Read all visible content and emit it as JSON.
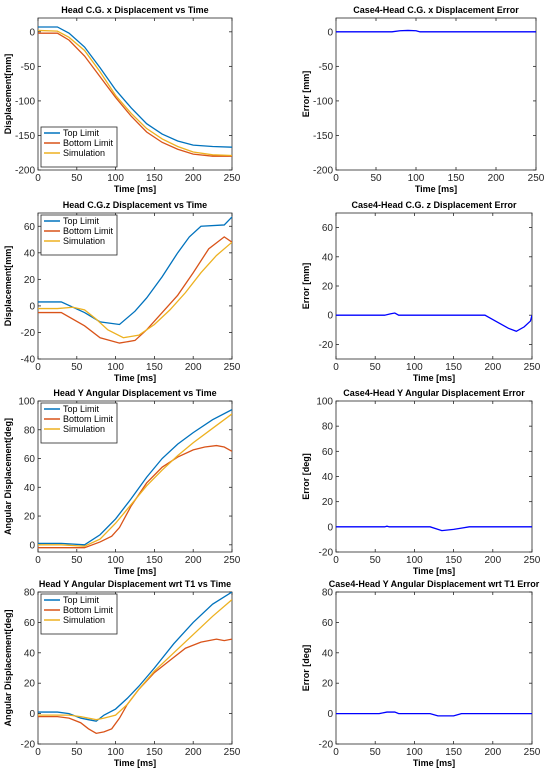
{
  "colors": {
    "top": "#0072BD",
    "bottom": "#D95319",
    "sim": "#EDB120",
    "error": "#0000FF"
  },
  "chart_data": [
    {
      "type": "line",
      "title": "Head C.G. x Displacement vs Time",
      "xlabel": "Time [ms]",
      "ylabel": "Displacement[mm]",
      "xlim": [
        0,
        250
      ],
      "ylim": [
        -200,
        20
      ],
      "xticks": [
        0,
        50,
        100,
        150,
        200,
        250
      ],
      "yticks": [
        -200,
        -150,
        -100,
        -50,
        0
      ],
      "legend": "bottom-left",
      "series": [
        {
          "name": "Top Limit",
          "color": "top",
          "x": [
            0,
            25,
            40,
            60,
            80,
            100,
            120,
            140,
            160,
            180,
            200,
            225,
            250
          ],
          "y": [
            7,
            7,
            -2,
            -22,
            -52,
            -84,
            -110,
            -133,
            -148,
            -158,
            -164,
            -166,
            -167
          ]
        },
        {
          "name": "Bottom Limit",
          "color": "bottom",
          "x": [
            0,
            25,
            40,
            60,
            80,
            100,
            120,
            140,
            160,
            180,
            200,
            225,
            250
          ],
          "y": [
            -2,
            -2,
            -12,
            -35,
            -65,
            -95,
            -122,
            -145,
            -160,
            -170,
            -177,
            -180,
            -180
          ]
        },
        {
          "name": "Simulation",
          "color": "sim",
          "x": [
            0,
            25,
            40,
            60,
            80,
            100,
            120,
            140,
            160,
            180,
            200,
            225,
            250
          ],
          "y": [
            2,
            1,
            -8,
            -27,
            -58,
            -92,
            -118,
            -140,
            -155,
            -166,
            -174,
            -178,
            -179
          ]
        }
      ]
    },
    {
      "type": "line",
      "title": "Case4-Head C.G. x Displacement Error",
      "xlabel": "Time [ms]",
      "ylabel": "Error [mm]",
      "xlim": [
        0,
        250
      ],
      "ylim": [
        -200,
        20
      ],
      "xticks": [
        0,
        50,
        100,
        150,
        200,
        250
      ],
      "yticks": [
        -200,
        -150,
        -100,
        -50,
        0
      ],
      "series": [
        {
          "color": "error",
          "x": [
            0,
            70,
            80,
            90,
            100,
            105,
            200,
            240,
            250
          ],
          "y": [
            0,
            0,
            1.5,
            2,
            1.5,
            0,
            0,
            0,
            0
          ]
        }
      ]
    },
    {
      "type": "line",
      "title": "Head C.G.z Displacement vs Time",
      "xlabel": "Time [ms]",
      "ylabel": "Displacement[mm]",
      "xlim": [
        0,
        250
      ],
      "ylim": [
        -40,
        70
      ],
      "xticks": [
        0,
        50,
        100,
        150,
        200,
        250
      ],
      "yticks": [
        -40,
        -20,
        0,
        20,
        40,
        60
      ],
      "legend": "top-left",
      "series": [
        {
          "name": "Top Limit",
          "color": "top",
          "x": [
            0,
            30,
            60,
            80,
            105,
            125,
            140,
            160,
            180,
            195,
            210,
            240,
            250
          ],
          "y": [
            3,
            3,
            -5,
            -12,
            -14,
            -4,
            6,
            22,
            40,
            52,
            60,
            61,
            67
          ]
        },
        {
          "name": "Bottom Limit",
          "color": "bottom",
          "x": [
            0,
            30,
            60,
            80,
            105,
            125,
            140,
            160,
            180,
            200,
            220,
            240,
            250
          ],
          "y": [
            -5,
            -5,
            -15,
            -24,
            -28,
            -26,
            -18,
            -5,
            8,
            25,
            43,
            52,
            48
          ]
        },
        {
          "name": "Simulation",
          "color": "sim",
          "x": [
            0,
            25,
            45,
            60,
            75,
            90,
            110,
            130,
            150,
            170,
            190,
            210,
            230,
            250
          ],
          "y": [
            -2,
            -2,
            -1,
            -3,
            -10,
            -18,
            -24,
            -22,
            -14,
            -3,
            10,
            25,
            38,
            48
          ]
        }
      ]
    },
    {
      "type": "line",
      "title": "Case4-Head C.G. z Displacement Error",
      "xlabel": "Time [ms]",
      "ylabel": "Error [mm]",
      "xlim": [
        0,
        250
      ],
      "ylim": [
        -30,
        70
      ],
      "xticks": [
        0,
        50,
        100,
        150,
        200,
        250
      ],
      "yticks": [
        -20,
        0,
        20,
        40,
        60
      ],
      "series": [
        {
          "color": "error",
          "x": [
            0,
            55,
            62,
            70,
            75,
            80,
            190,
            200,
            210,
            220,
            230,
            240,
            248,
            250
          ],
          "y": [
            0,
            0,
            0,
            1,
            1.5,
            0,
            0,
            -3,
            -6,
            -9,
            -11,
            -8,
            -4,
            0
          ]
        }
      ]
    },
    {
      "type": "line",
      "title": "Head Y Angular Displacement vs Time",
      "xlabel": "Time [ms]",
      "ylabel": "Angular Displacement[deg]",
      "xlim": [
        0,
        250
      ],
      "ylim": [
        -5,
        100
      ],
      "xticks": [
        0,
        50,
        100,
        150,
        200,
        250
      ],
      "yticks": [
        0,
        20,
        40,
        60,
        80,
        100
      ],
      "legend": "top-left",
      "series": [
        {
          "name": "Top Limit",
          "color": "top",
          "x": [
            0,
            30,
            60,
            80,
            100,
            120,
            140,
            160,
            180,
            200,
            225,
            250
          ],
          "y": [
            1,
            1,
            0,
            7,
            18,
            32,
            47,
            60,
            70,
            78,
            87,
            94
          ]
        },
        {
          "name": "Bottom Limit",
          "color": "bottom",
          "x": [
            0,
            30,
            60,
            80,
            95,
            105,
            120,
            140,
            160,
            180,
            200,
            215,
            230,
            240,
            250
          ],
          "y": [
            -2,
            -2,
            -2,
            2,
            6,
            12,
            27,
            43,
            54,
            61,
            66,
            68,
            69,
            68,
            65
          ]
        },
        {
          "name": "Simulation",
          "color": "sim",
          "x": [
            0,
            30,
            60,
            80,
            100,
            120,
            140,
            160,
            180,
            200,
            225,
            250
          ],
          "y": [
            0,
            0,
            -1,
            4,
            15,
            28,
            41,
            52,
            62,
            71,
            81,
            91
          ]
        }
      ]
    },
    {
      "type": "line",
      "title": "Case4-Head Y Angular Displacement Error",
      "xlabel": "Time [ms]",
      "ylabel": "Error [deg]",
      "xlim": [
        0,
        250
      ],
      "ylim": [
        -20,
        100
      ],
      "xticks": [
        0,
        50,
        100,
        150,
        200,
        250
      ],
      "yticks": [
        -20,
        0,
        20,
        40,
        60,
        80,
        100
      ],
      "series": [
        {
          "color": "error",
          "x": [
            0,
            62,
            65,
            68,
            120,
            135,
            150,
            160,
            170,
            250
          ],
          "y": [
            0,
            0,
            0.5,
            0,
            0,
            -3,
            -2,
            -1,
            0,
            0
          ]
        }
      ]
    },
    {
      "type": "line",
      "title": "Head Y Angular Displacement wrt T1 vs Time",
      "xlabel": "Time [ms]",
      "ylabel": "Angular Displacement[deg]",
      "xlim": [
        0,
        250
      ],
      "ylim": [
        -20,
        80
      ],
      "xticks": [
        0,
        50,
        100,
        150,
        200,
        250
      ],
      "yticks": [
        -20,
        0,
        20,
        40,
        60,
        80
      ],
      "legend": "top-left",
      "series": [
        {
          "name": "Top Limit",
          "color": "top",
          "x": [
            0,
            25,
            40,
            55,
            65,
            75,
            85,
            100,
            115,
            130,
            150,
            175,
            200,
            225,
            250
          ],
          "y": [
            1,
            1,
            0,
            -3,
            -4,
            -5,
            -1,
            3,
            10,
            18,
            30,
            46,
            60,
            72,
            80
          ]
        },
        {
          "name": "Bottom Limit",
          "color": "bottom",
          "x": [
            0,
            25,
            40,
            55,
            65,
            75,
            85,
            95,
            105,
            115,
            130,
            150,
            170,
            190,
            210,
            230,
            240,
            250
          ],
          "y": [
            -2,
            -2,
            -3,
            -6,
            -10,
            -13,
            -12,
            -10,
            -3,
            6,
            16,
            27,
            35,
            43,
            47,
            49,
            48,
            49
          ]
        },
        {
          "name": "Simulation",
          "color": "sim",
          "x": [
            0,
            25,
            40,
            55,
            65,
            75,
            85,
            100,
            115,
            130,
            150,
            175,
            200,
            225,
            250
          ],
          "y": [
            -1,
            -1,
            -1,
            -2,
            -3,
            -4,
            -3,
            -1,
            6,
            16,
            28,
            40,
            52,
            64,
            75
          ]
        }
      ]
    },
    {
      "type": "line",
      "title": "Case4-Head Y Angular Displacement wrt T1 Error",
      "xlabel": "Time [ms]",
      "ylabel": "Error [deg]",
      "xlim": [
        0,
        250
      ],
      "ylim": [
        -20,
        80
      ],
      "xticks": [
        0,
        50,
        100,
        150,
        200,
        250
      ],
      "yticks": [
        -20,
        0,
        20,
        40,
        60,
        80
      ],
      "series": [
        {
          "color": "error",
          "x": [
            0,
            55,
            65,
            75,
            80,
            120,
            130,
            150,
            160,
            165,
            250
          ],
          "y": [
            0,
            0,
            1,
            1,
            0,
            0,
            -1.5,
            -1.5,
            0,
            0,
            0
          ]
        }
      ]
    }
  ]
}
